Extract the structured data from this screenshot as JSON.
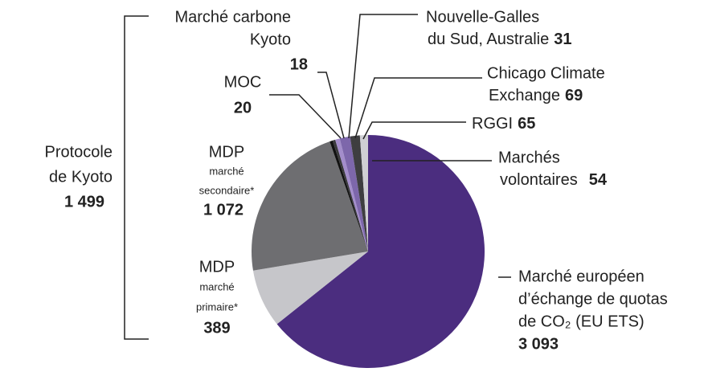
{
  "chart_data": {
    "type": "pie",
    "categories": [
      [
        "Marché européen",
        "d’échange de quotas",
        "de CO₂ (EU ETS)"
      ],
      [
        "MDP",
        "marché",
        "primaire*"
      ],
      [
        "MDP",
        "marché",
        "secondaire*"
      ],
      [
        "MOC"
      ],
      [
        "Marché carbone",
        "Kyoto"
      ],
      [
        "Nouvelle-Galles",
        "du Sud, Australie"
      ],
      [
        "Chicago Climate",
        "Exchange"
      ],
      [
        "RGGI"
      ],
      [
        "Marchés",
        "volontaires"
      ]
    ],
    "values": [
      3093,
      389,
      1072,
      20,
      18,
      31,
      69,
      65,
      54
    ],
    "value_labels": [
      "3 093",
      "389",
      "1 072",
      "20",
      "18",
      "31",
      "69",
      "65",
      "54"
    ],
    "colors": [
      "#4b2d7f",
      "#c6c6ca",
      "#6e6e71",
      "#111111",
      "#3a3a3c",
      "#a38dcb",
      "#7d67ab",
      "#3e3e40",
      "#cfcfd3"
    ],
    "group": {
      "label_lines": [
        "Protocole",
        "de Kyoto"
      ],
      "value": 1499,
      "value_label": "1 499"
    }
  }
}
